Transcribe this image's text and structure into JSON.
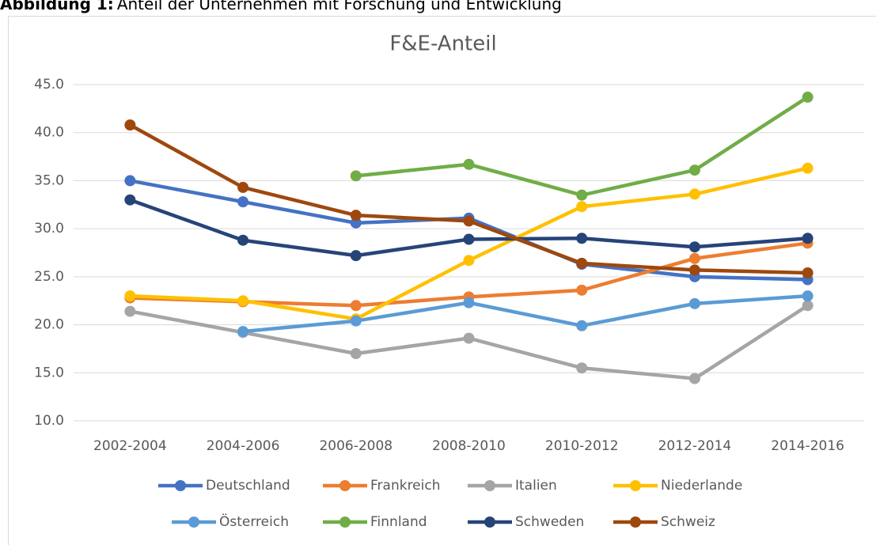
{
  "caption_label": "Abbildung 1:",
  "caption": "Anteil der Unternehmen mit Forschung und Entwicklung",
  "chart_data": {
    "type": "line",
    "title": "F&E-Anteil",
    "categories": [
      "2002-2004",
      "2004-2006",
      "2006-2008",
      "2008-2010",
      "2010-2012",
      "2012-2014",
      "2014-2016"
    ],
    "ylim": [
      10,
      45
    ],
    "yticks": [
      {
        "value": 10,
        "label": "10.0"
      },
      {
        "value": 15,
        "label": "15.0"
      },
      {
        "value": 20,
        "label": "20.0"
      },
      {
        "value": 25,
        "label": "25.0"
      },
      {
        "value": 30,
        "label": "30.0"
      },
      {
        "value": 35,
        "label": "35.0"
      },
      {
        "value": 40,
        "label": "40.0"
      },
      {
        "value": 45,
        "label": "45.0"
      }
    ],
    "grid": true,
    "series": [
      {
        "name": "Deutschland",
        "color": "#4472c4",
        "values": [
          35.0,
          32.8,
          30.6,
          31.1,
          26.3,
          25.0,
          24.7
        ]
      },
      {
        "name": "Frankreich",
        "color": "#ed7d31",
        "values": [
          22.8,
          22.4,
          22.0,
          22.9,
          23.6,
          26.9,
          28.5
        ]
      },
      {
        "name": "Italien",
        "color": "#a5a5a5",
        "values": [
          21.4,
          19.2,
          17.0,
          18.6,
          15.5,
          14.4,
          22.0
        ]
      },
      {
        "name": "Niederlande",
        "color": "#ffc000",
        "values": [
          23.0,
          22.5,
          20.6,
          26.7,
          32.3,
          33.6,
          36.3
        ]
      },
      {
        "name": "Österreich",
        "color": "#5b9bd5",
        "values": [
          null,
          19.3,
          20.4,
          22.3,
          19.9,
          22.2,
          23.0
        ]
      },
      {
        "name": "Finnland",
        "color": "#70ad47",
        "values": [
          null,
          null,
          35.5,
          36.7,
          33.5,
          36.1,
          43.7
        ]
      },
      {
        "name": "Schweden",
        "color": "#264478",
        "values": [
          33.0,
          28.8,
          27.2,
          28.9,
          29.0,
          28.1,
          29.0
        ]
      },
      {
        "name": "Schweiz",
        "color": "#9e480e",
        "values": [
          40.8,
          34.3,
          31.4,
          30.8,
          26.4,
          25.7,
          25.4
        ]
      }
    ]
  }
}
